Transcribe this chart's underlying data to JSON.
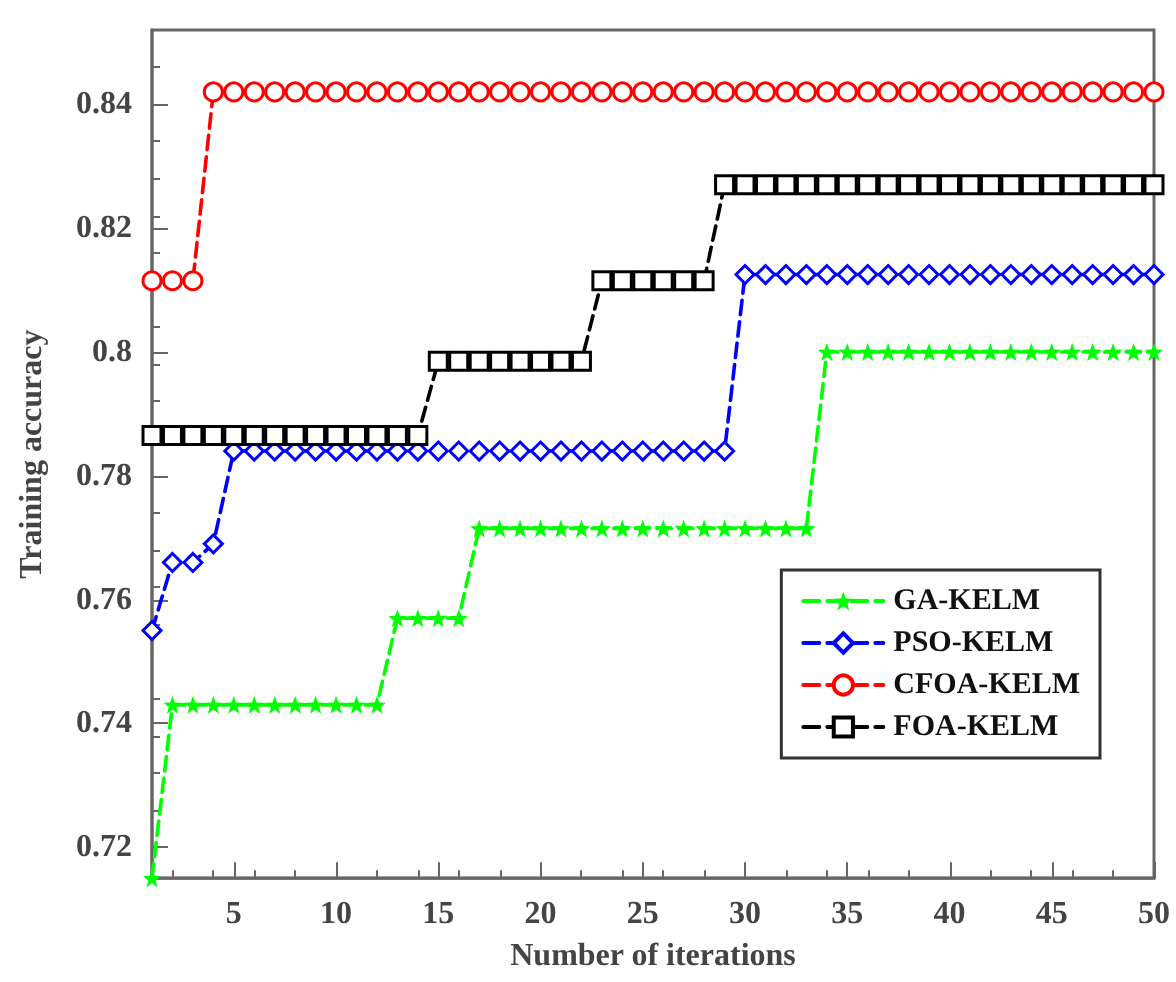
{
  "chart_data": {
    "type": "line",
    "xlabel": "Number of iterations",
    "ylabel": "Training accuracy",
    "x": [
      1,
      2,
      3,
      4,
      5,
      6,
      7,
      8,
      9,
      10,
      11,
      12,
      13,
      14,
      15,
      16,
      17,
      18,
      19,
      20,
      21,
      22,
      23,
      24,
      25,
      26,
      27,
      28,
      29,
      30,
      31,
      32,
      33,
      34,
      35,
      36,
      37,
      38,
      39,
      40,
      41,
      42,
      43,
      44,
      45,
      46,
      47,
      48,
      49,
      50
    ],
    "series": [
      {
        "name": "GA-KELM",
        "color": "#00ff00",
        "marker": "star",
        "values": [
          0.715,
          0.743,
          0.743,
          0.743,
          0.743,
          0.743,
          0.743,
          0.743,
          0.743,
          0.743,
          0.743,
          0.743,
          0.757,
          0.757,
          0.757,
          0.757,
          0.7715,
          0.7715,
          0.7715,
          0.7715,
          0.7715,
          0.7715,
          0.7715,
          0.7715,
          0.7715,
          0.7715,
          0.7715,
          0.7715,
          0.7715,
          0.7715,
          0.7715,
          0.7715,
          0.7715,
          0.8,
          0.8,
          0.8,
          0.8,
          0.8,
          0.8,
          0.8,
          0.8,
          0.8,
          0.8,
          0.8,
          0.8,
          0.8,
          0.8,
          0.8,
          0.8,
          0.8
        ]
      },
      {
        "name": "PSO-KELM",
        "color": "#0000ff",
        "marker": "diamond",
        "values": [
          0.755,
          0.766,
          0.766,
          0.769,
          0.784,
          0.784,
          0.784,
          0.784,
          0.784,
          0.784,
          0.784,
          0.784,
          0.784,
          0.784,
          0.784,
          0.784,
          0.784,
          0.784,
          0.784,
          0.784,
          0.784,
          0.784,
          0.784,
          0.784,
          0.784,
          0.784,
          0.784,
          0.784,
          0.784,
          0.8125,
          0.8125,
          0.8125,
          0.8125,
          0.8125,
          0.8125,
          0.8125,
          0.8125,
          0.8125,
          0.8125,
          0.8125,
          0.8125,
          0.8125,
          0.8125,
          0.8125,
          0.8125,
          0.8125,
          0.8125,
          0.8125,
          0.8125,
          0.8125
        ]
      },
      {
        "name": "CFOA-KELM",
        "color": "#ff0000",
        "marker": "circle",
        "values": [
          0.8115,
          0.8115,
          0.8115,
          0.842,
          0.842,
          0.842,
          0.842,
          0.842,
          0.842,
          0.842,
          0.842,
          0.842,
          0.842,
          0.842,
          0.842,
          0.842,
          0.842,
          0.842,
          0.842,
          0.842,
          0.842,
          0.842,
          0.842,
          0.842,
          0.842,
          0.842,
          0.842,
          0.842,
          0.842,
          0.842,
          0.842,
          0.842,
          0.842,
          0.842,
          0.842,
          0.842,
          0.842,
          0.842,
          0.842,
          0.842,
          0.842,
          0.842,
          0.842,
          0.842,
          0.842,
          0.842,
          0.842,
          0.842,
          0.842,
          0.842
        ]
      },
      {
        "name": "FOA-KELM",
        "color": "#000000",
        "marker": "square",
        "values": [
          0.7865,
          0.7865,
          0.7865,
          0.7865,
          0.7865,
          0.7865,
          0.7865,
          0.7865,
          0.7865,
          0.7865,
          0.7865,
          0.7865,
          0.7865,
          0.7865,
          0.7985,
          0.7985,
          0.7985,
          0.7985,
          0.7985,
          0.7985,
          0.7985,
          0.7985,
          0.8115,
          0.8115,
          0.8115,
          0.8115,
          0.8115,
          0.8115,
          0.827,
          0.827,
          0.827,
          0.827,
          0.827,
          0.827,
          0.827,
          0.827,
          0.827,
          0.827,
          0.827,
          0.827,
          0.827,
          0.827,
          0.827,
          0.827,
          0.827,
          0.827,
          0.827,
          0.827,
          0.827,
          0.827
        ]
      }
    ],
    "xlim": [
      1,
      50
    ],
    "xticks": [
      5,
      10,
      15,
      20,
      25,
      30,
      35,
      40,
      45,
      50
    ],
    "ylim": [
      0.715,
      0.852
    ],
    "yticks": [
      0.72,
      0.74,
      0.76,
      0.78,
      0.8,
      0.82,
      0.84
    ],
    "line_style": "dashed",
    "legend": "bottom right",
    "grid": false
  }
}
